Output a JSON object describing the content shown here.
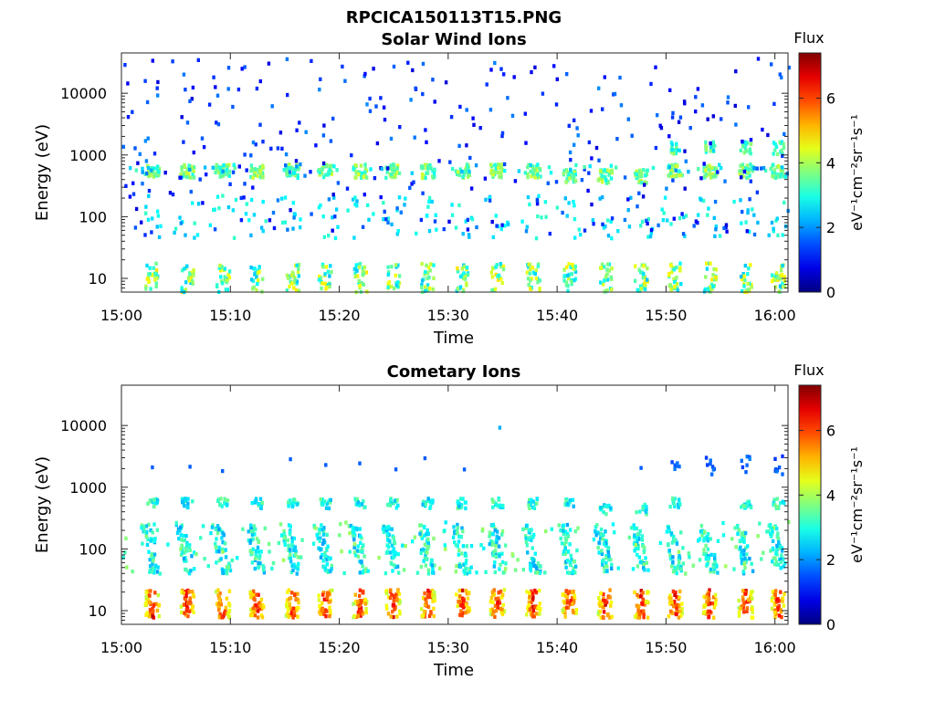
{
  "figure": {
    "title": "RPCICA150113T15.PNG"
  },
  "chart_data": [
    {
      "type": "heatmap",
      "title": "Solar Wind Ions",
      "xlabel": "Time",
      "ylabel": "Energy (eV)",
      "y_scale": "log",
      "ylim": [
        6,
        45000
      ],
      "x_ticks": [
        "15:00",
        "15:10",
        "15:20",
        "15:30",
        "15:40",
        "15:50",
        "16:00"
      ],
      "x_tick_values": [
        0,
        10,
        20,
        30,
        40,
        50,
        60
      ],
      "xlim_minutes": [
        0,
        61.2
      ],
      "y_ticks": [
        "10",
        "100",
        "1000",
        "10000"
      ],
      "y_tick_values": [
        10,
        100,
        1000,
        10000
      ],
      "colorbar": {
        "label": "Flux",
        "unit": "eV⁻¹cm⁻²sr⁻¹s⁻¹",
        "range": [
          0,
          7.4
        ],
        "ticks": [
          "0",
          "2",
          "4",
          "6"
        ],
        "tick_values": [
          0,
          2,
          4,
          6
        ],
        "colormap": "jet"
      },
      "pulse_times_minutes": [
        2.7,
        5.9,
        9.2,
        12.3,
        15.6,
        18.6,
        21.8,
        24.8,
        28.0,
        31.2,
        34.4,
        37.7,
        41.0,
        44.3,
        47.6,
        50.7,
        53.9,
        57.2,
        60.2
      ],
      "features": [
        {
          "name": "solar-wind-peak",
          "energy_eV": 550,
          "intensity": 3.8
        },
        {
          "name": "high-energy-component",
          "energy_eV": 1300,
          "intensity": 3.0
        },
        {
          "name": "low-energy-bursts",
          "energy_eV": 10,
          "intensity": 4.2
        },
        {
          "name": "background-noise",
          "energy_eV_range": [
            50,
            40000
          ],
          "intensity": 1.5
        }
      ]
    },
    {
      "type": "heatmap",
      "title": "Cometary Ions",
      "xlabel": "Time",
      "ylabel": "Energy (eV)",
      "y_scale": "log",
      "ylim": [
        6,
        45000
      ],
      "x_ticks": [
        "15:00",
        "15:10",
        "15:20",
        "15:30",
        "15:40",
        "15:50",
        "16:00"
      ],
      "x_tick_values": [
        0,
        10,
        20,
        30,
        40,
        50,
        60
      ],
      "xlim_minutes": [
        0,
        61.2
      ],
      "y_ticks": [
        "10",
        "100",
        "1000",
        "10000"
      ],
      "y_tick_values": [
        10,
        100,
        1000,
        10000
      ],
      "colorbar": {
        "label": "Flux",
        "unit": "eV⁻¹cm⁻²sr⁻¹s⁻¹",
        "range": [
          0,
          7.4
        ],
        "ticks": [
          "0",
          "2",
          "4",
          "6"
        ],
        "tick_values": [
          0,
          2,
          4,
          6
        ],
        "colormap": "jet"
      },
      "pulse_times_minutes": [
        2.7,
        5.9,
        9.2,
        12.3,
        15.6,
        18.6,
        21.8,
        24.8,
        28.0,
        31.2,
        34.4,
        37.7,
        41.0,
        44.3,
        47.6,
        50.7,
        53.9,
        57.2,
        60.2
      ],
      "features": [
        {
          "name": "upper-band",
          "energy_eV": 550,
          "intensity": 2.8
        },
        {
          "name": "intermediate-band",
          "energy_eV_range": [
            40,
            250
          ],
          "intensity": 3.2
        },
        {
          "name": "low-energy-bursts",
          "energy_eV": 13,
          "intensity": 6.4
        },
        {
          "name": "high-energy-specks",
          "energy_eV": 2300,
          "intensity": 1.6
        }
      ]
    }
  ]
}
